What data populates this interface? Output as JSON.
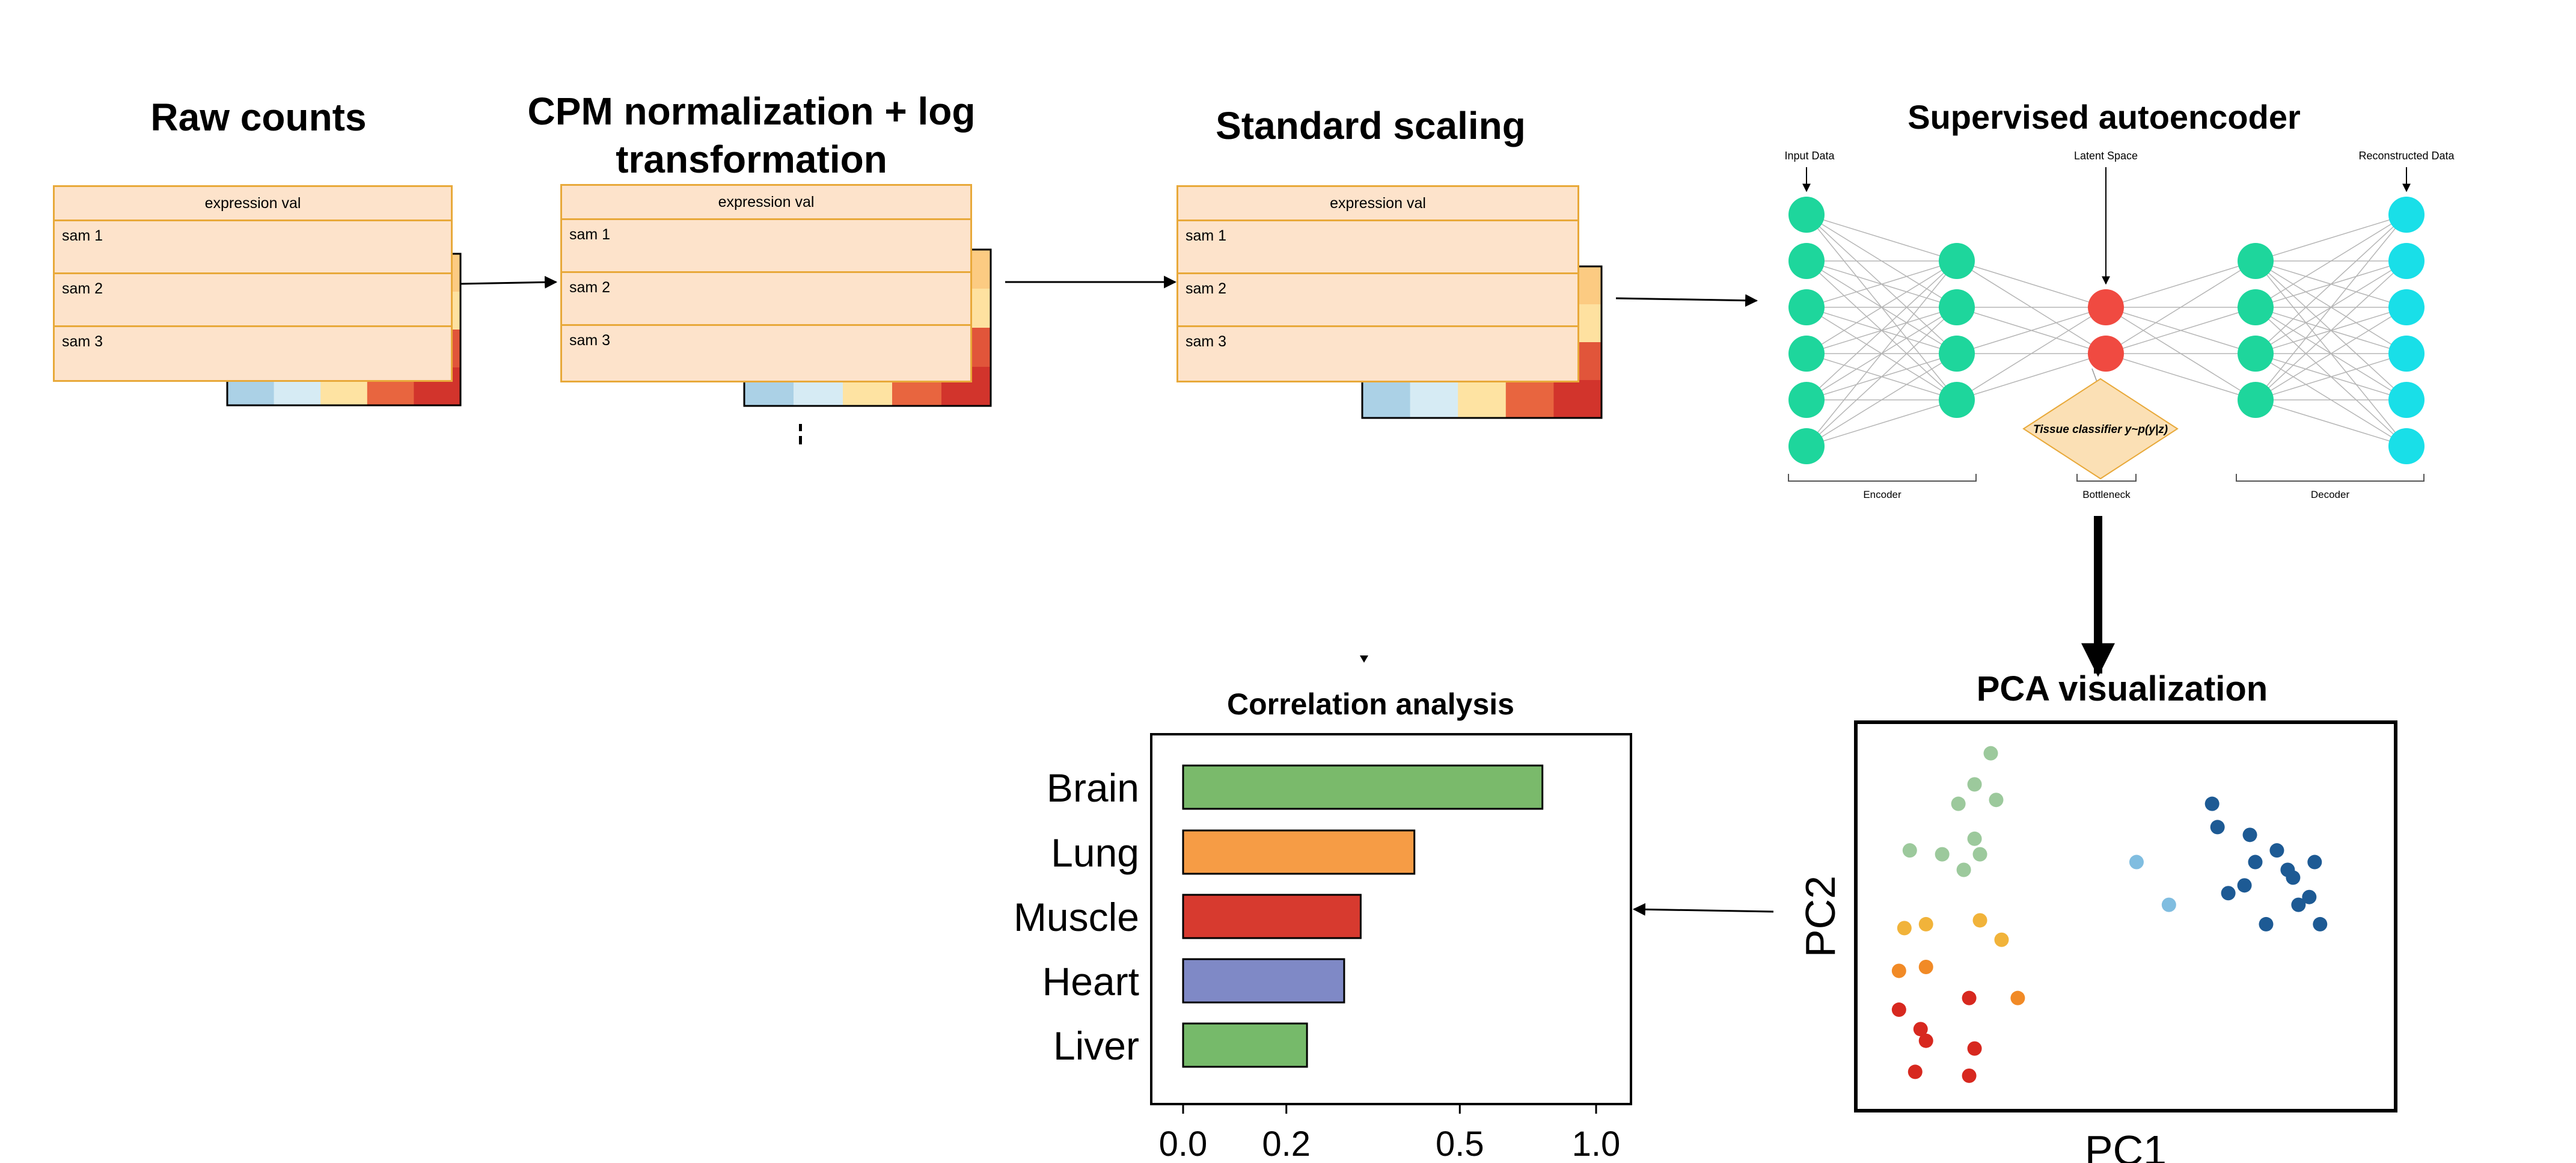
{
  "steps": {
    "raw_counts": "Raw counts",
    "cpm_line1": "CPM normalization + log",
    "cpm_line2": "transformation",
    "scaling": "Standard scaling",
    "autoencoder": "Supervised autoencoder",
    "pca": "PCA visualization",
    "correlation": "Correlation analysis"
  },
  "expression_table": {
    "header": "expression val",
    "rows": [
      "sam 1",
      "sam 2",
      "sam 3"
    ]
  },
  "heatmap": {
    "type": "heatmap",
    "colors": [
      [
        "#2d6aa3",
        "#5b9ecf",
        "#e55f3c",
        "#f6a35a",
        "#fccb82"
      ],
      [
        "#5b9ecf",
        "#86bcdd",
        "#f6ac6b",
        "#fdd08b",
        "#fee1a0"
      ],
      [
        "#86bcdd",
        "#abd1e6",
        "#fed791",
        "#f0844d",
        "#e1553a"
      ],
      [
        "#abd1e6",
        "#d6ebf4",
        "#fee3a2",
        "#e8653f",
        "#d2342c"
      ]
    ]
  },
  "autoencoder": {
    "input_label": "Input Data",
    "latent_label": "Latent Space",
    "output_label": "Reconstructed Data",
    "classifier_label": "Tissue classifier y~p(y|z)",
    "encoder_label": "Encoder",
    "bottleneck_label": "Bottleneck",
    "decoder_label": "Decoder",
    "node_color": "#1ed69c",
    "latent_color": "#f04a41",
    "output_color": "#19dfe8",
    "classifier_color": "#fbe0b5"
  },
  "chart_data": [
    {
      "type": "scatter",
      "title": "PCA visualization",
      "xlabel": "PC1",
      "ylabel": "PC2",
      "grid": false,
      "series": [
        {
          "color": "#9cc99c",
          "points": [
            [
              0.25,
              0.92
            ],
            [
              0.26,
              0.8
            ],
            [
              0.22,
              0.84
            ],
            [
              0.19,
              0.79
            ],
            [
              0.22,
              0.7
            ],
            [
              0.23,
              0.66
            ],
            [
              0.2,
              0.62
            ],
            [
              0.16,
              0.66
            ],
            [
              0.1,
              0.67
            ]
          ]
        },
        {
          "color": "#f1b33a",
          "points": [
            [
              0.13,
              0.48
            ],
            [
              0.09,
              0.47
            ],
            [
              0.23,
              0.49
            ],
            [
              0.27,
              0.44
            ]
          ]
        },
        {
          "color": "#f18a26",
          "points": [
            [
              0.08,
              0.36
            ],
            [
              0.13,
              0.37
            ],
            [
              0.3,
              0.29
            ]
          ]
        },
        {
          "color": "#d7281f",
          "points": [
            [
              0.08,
              0.26
            ],
            [
              0.12,
              0.21
            ],
            [
              0.13,
              0.18
            ],
            [
              0.21,
              0.29
            ],
            [
              0.22,
              0.16
            ],
            [
              0.11,
              0.1
            ],
            [
              0.21,
              0.09
            ]
          ]
        },
        {
          "color": "#80bde0",
          "points": [
            [
              0.52,
              0.64
            ],
            [
              0.58,
              0.53
            ]
          ]
        },
        {
          "color": "#1d5a94",
          "points": [
            [
              0.66,
              0.79
            ],
            [
              0.67,
              0.73
            ],
            [
              0.73,
              0.71
            ],
            [
              0.78,
              0.67
            ],
            [
              0.74,
              0.64
            ],
            [
              0.8,
              0.62
            ],
            [
              0.81,
              0.6
            ],
            [
              0.72,
              0.58
            ],
            [
              0.69,
              0.56
            ],
            [
              0.85,
              0.64
            ],
            [
              0.84,
              0.55
            ],
            [
              0.82,
              0.53
            ],
            [
              0.86,
              0.48
            ],
            [
              0.76,
              0.48
            ]
          ]
        }
      ]
    },
    {
      "type": "bar",
      "title": "Correlation analysis",
      "orientation": "horizontal",
      "categories": [
        "Brain",
        "Lung",
        "Muscle",
        "Heart",
        "Liver"
      ],
      "values": [
        0.87,
        0.56,
        0.43,
        0.39,
        0.3
      ],
      "colors": [
        "#7aba6b",
        "#f69c45",
        "#d73a2f",
        "#7f89c6",
        "#76ba6a"
      ],
      "xlim": [
        0,
        1.06
      ],
      "ticks": [
        0.0,
        0.25,
        0.5,
        1.0
      ],
      "tick_labels": [
        "0.0",
        "0.2",
        "0.5",
        "1.0"
      ],
      "tick_positions": [
        0.0,
        0.25,
        0.67,
        1.0
      ]
    }
  ]
}
